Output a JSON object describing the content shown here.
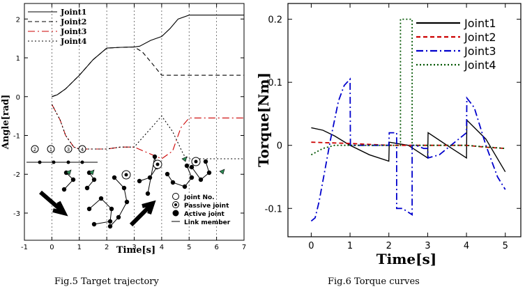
{
  "chart_data": [
    {
      "type": "line",
      "caption": "Fig.5 Target trajectory",
      "xlabel": "Time[s]",
      "ylabel": "Angle[rad]",
      "xlim": [
        -1,
        7
      ],
      "ylim": [
        -3.7,
        2.4
      ],
      "xticks": [
        "-1",
        "0",
        "1",
        "2",
        "3",
        "4",
        "5",
        "6",
        "7"
      ],
      "yticks": [
        "2",
        "1",
        "0",
        "-1",
        "-2",
        "-3"
      ],
      "grid": "vertical dashed at each second",
      "legend_position": "top-left",
      "series": [
        {
          "name": "Joint1",
          "color": "#000000",
          "dash": "solid",
          "x": [
            0,
            0.2,
            0.5,
            1,
            1.5,
            2,
            2.5,
            3,
            3.2,
            3.6,
            4,
            4.3,
            4.6,
            5,
            7
          ],
          "y": [
            0,
            0.05,
            0.2,
            0.55,
            0.95,
            1.25,
            1.27,
            1.28,
            1.3,
            1.45,
            1.55,
            1.75,
            2.0,
            2.1,
            2.1
          ]
        },
        {
          "name": "Joint2",
          "color": "#000000",
          "dash": "dashed",
          "x": [
            0,
            0.2,
            0.5,
            1,
            1.5,
            2,
            2.5,
            3,
            3.3,
            3.6,
            4,
            5,
            7
          ],
          "y": [
            0,
            0.05,
            0.2,
            0.55,
            0.95,
            1.25,
            1.27,
            1.28,
            1.15,
            0.9,
            0.55,
            0.55,
            0.55
          ]
        },
        {
          "name": "Joint3",
          "color": "#cc0000",
          "dash": "dashdot",
          "x": [
            0,
            0.3,
            0.5,
            0.8,
            1,
            2,
            2.5,
            3,
            3.5,
            4,
            4.4,
            4.7,
            5,
            7
          ],
          "y": [
            -0.2,
            -0.6,
            -1.0,
            -1.3,
            -1.35,
            -1.35,
            -1.3,
            -1.3,
            -1.45,
            -1.6,
            -1.4,
            -0.8,
            -0.55,
            -0.55
          ]
        },
        {
          "name": "Joint4",
          "color": "#000000",
          "dash": "dotted",
          "x": [
            0,
            0.3,
            0.5,
            0.8,
            1,
            2,
            2.5,
            3,
            3.5,
            4,
            4.4,
            4.8,
            5,
            7
          ],
          "y": [
            -0.2,
            -0.6,
            -1.0,
            -1.3,
            -1.35,
            -1.35,
            -1.3,
            -1.3,
            -0.9,
            -0.5,
            -0.9,
            -1.5,
            -1.6,
            -1.6
          ]
        }
      ],
      "inset_legend": [
        "Joint No.",
        "Passive joint",
        "Active joint",
        "Link member"
      ],
      "joint_numbers": [
        "2",
        "1",
        "3",
        "4"
      ]
    },
    {
      "type": "line",
      "caption": "Fig.6 Torque curves",
      "xlabel": "Time[s]",
      "ylabel": "Torque[Nm]",
      "xlim": [
        -0.6,
        5.4
      ],
      "ylim": [
        -0.145,
        0.225
      ],
      "xticks": [
        "0",
        "1",
        "2",
        "3",
        "4",
        "5"
      ],
      "yticks": [
        "0.2",
        "0.1",
        "0",
        "-0.1"
      ],
      "grid": "none",
      "legend_position": "top-right",
      "series": [
        {
          "name": "Joint1",
          "color": "#000000",
          "dash": "solid",
          "x": [
            0,
            0.3,
            0.6,
            1,
            1.5,
            2,
            2.01,
            2.5,
            3,
            3.01,
            3.5,
            4,
            4.01,
            4.5,
            5
          ],
          "y": [
            0.028,
            0.024,
            0.015,
            0.0,
            -0.015,
            -0.025,
            0.005,
            0.0,
            -0.02,
            0.02,
            0.0,
            -0.02,
            0.04,
            0.01,
            -0.042
          ]
        },
        {
          "name": "Joint2",
          "color": "#cc0000",
          "dash": "dashed",
          "x": [
            0,
            1,
            2,
            2.5,
            3,
            4,
            4.5,
            5
          ],
          "y": [
            0.005,
            0.003,
            0.0,
            0.0,
            0.0,
            0.0,
            -0.003,
            -0.005
          ]
        },
        {
          "name": "Joint3",
          "color": "#0000cc",
          "dash": "dashdot",
          "x": [
            0,
            0.1,
            0.2,
            0.35,
            0.5,
            0.7,
            0.85,
            1,
            1.01,
            1.2,
            2,
            2.01,
            2.2,
            2.2,
            2.35,
            2.6,
            2.6,
            2.7,
            2.9,
            3,
            3.01,
            3.3,
            3.6,
            4,
            4.01,
            4.2,
            4.5,
            4.8,
            5
          ],
          "y": [
            -0.12,
            -0.115,
            -0.09,
            -0.04,
            0.01,
            0.07,
            0.095,
            0.105,
            0.0,
            0.0,
            0.0,
            0.02,
            0.02,
            -0.1,
            -0.1,
            -0.11,
            0.0,
            0.0,
            -0.005,
            -0.005,
            -0.02,
            -0.015,
            0.0,
            0.02,
            0.075,
            0.06,
            0.0,
            -0.05,
            -0.07
          ]
        },
        {
          "name": "Joint4",
          "color": "#005500",
          "dash": "dotted",
          "x": [
            0,
            0.3,
            0.6,
            1,
            1.5,
            2,
            2.2,
            2.3,
            2.3,
            2.6,
            2.6,
            2.8,
            3,
            4,
            5
          ],
          "y": [
            -0.015,
            -0.005,
            0.0,
            0.0,
            0.0,
            0.0,
            0.0,
            0.0,
            0.2,
            0.2,
            0.0,
            0.0,
            0.0,
            0.0,
            -0.005
          ]
        }
      ]
    }
  ]
}
